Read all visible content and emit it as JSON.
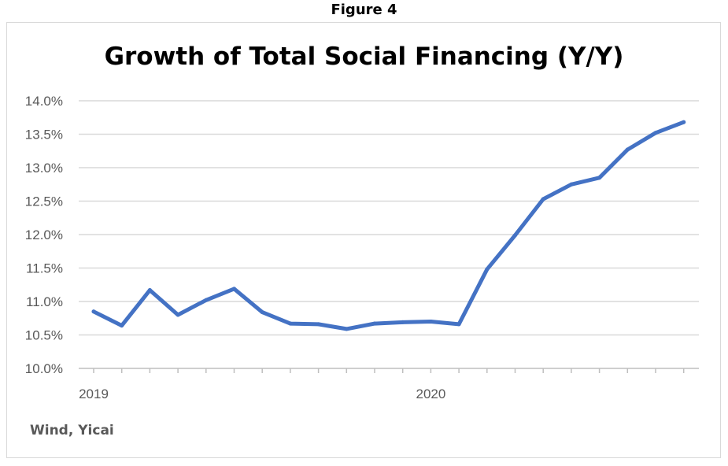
{
  "figure_label": "Figure 4",
  "source_note": "Wind, Yicai",
  "chart_data": {
    "type": "line",
    "title": "Growth of Total Social Financing (Y/Y)",
    "xlabel": "",
    "ylabel": "",
    "ylim": [
      10.0,
      14.0
    ],
    "y_ticks": [
      "10.0%",
      "10.5%",
      "11.0%",
      "11.5%",
      "12.0%",
      "12.5%",
      "13.0%",
      "13.5%",
      "14.0%"
    ],
    "x_tick_labels": [
      "2019",
      "2020"
    ],
    "x": [
      "2019-01",
      "2019-02",
      "2019-03",
      "2019-04",
      "2019-05",
      "2019-06",
      "2019-07",
      "2019-08",
      "2019-09",
      "2019-10",
      "2019-11",
      "2019-12",
      "2020-01",
      "2020-02",
      "2020-03",
      "2020-04",
      "2020-05",
      "2020-06",
      "2020-07",
      "2020-08",
      "2020-09",
      "2020-10"
    ],
    "series": [
      {
        "values": [
          10.85,
          10.64,
          11.17,
          10.8,
          11.02,
          11.19,
          10.84,
          10.67,
          10.66,
          10.59,
          10.67,
          10.69,
          10.7,
          10.66,
          11.48,
          11.99,
          12.53,
          12.75,
          12.85,
          13.27,
          13.52,
          13.68
        ],
        "color": "#4472c4"
      }
    ],
    "grid": true,
    "legend": "none"
  }
}
